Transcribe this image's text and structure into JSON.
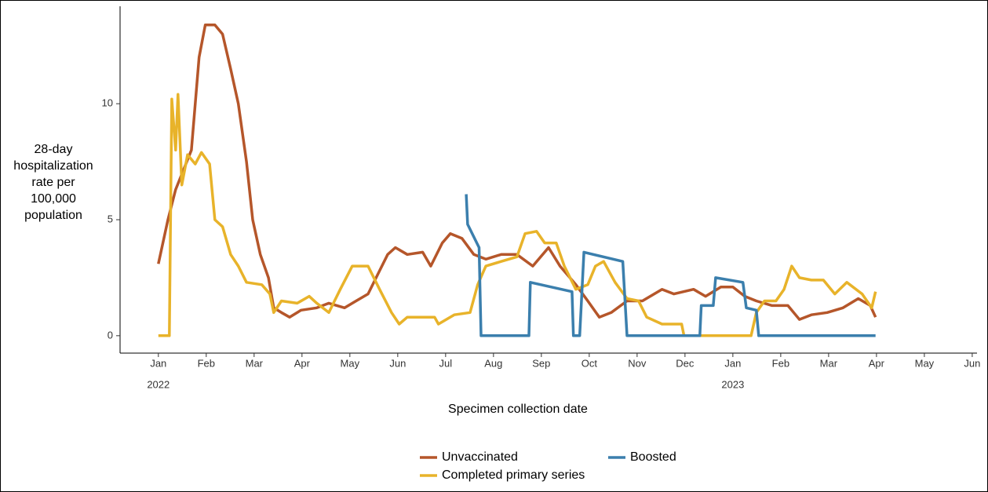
{
  "chart_data": {
    "type": "line",
    "ylabel_lines": [
      "28-day",
      "hospitalization",
      "rate per",
      "100,000",
      "population"
    ],
    "xlabel": "Specimen collection date",
    "xlim": [
      -0.8,
      17.1
    ],
    "ylim": [
      -0.75,
      14.2
    ],
    "yticks": [
      0,
      5,
      10
    ],
    "xticks": [
      {
        "value": 0,
        "label": "Jan"
      },
      {
        "value": 1,
        "label": "Feb"
      },
      {
        "value": 2,
        "label": "Mar"
      },
      {
        "value": 3,
        "label": "Apr"
      },
      {
        "value": 4,
        "label": "May"
      },
      {
        "value": 5,
        "label": "Jun"
      },
      {
        "value": 6,
        "label": "Jul"
      },
      {
        "value": 7,
        "label": "Aug"
      },
      {
        "value": 8,
        "label": "Sep"
      },
      {
        "value": 9,
        "label": "Oct"
      },
      {
        "value": 10,
        "label": "Nov"
      },
      {
        "value": 11,
        "label": "Dec"
      },
      {
        "value": 12,
        "label": "Jan"
      },
      {
        "value": 13,
        "label": "Feb"
      },
      {
        "value": 14,
        "label": "Mar"
      },
      {
        "value": 15,
        "label": "Apr"
      },
      {
        "value": 16,
        "label": "May"
      },
      {
        "value": 17,
        "label": "Jun"
      }
    ],
    "year_labels": [
      {
        "value": 0,
        "label": "2022"
      },
      {
        "value": 12,
        "label": "2023"
      }
    ],
    "grid": false,
    "legend": "bottom",
    "series": [
      {
        "name": "Unvaccinated",
        "color": "#b5562a",
        "x": [
          0,
          0.2,
          0.36,
          0.69,
          0.85,
          0.98,
          1.18,
          1.34,
          1.51,
          1.67,
          1.84,
          1.97,
          2.13,
          2.3,
          2.41,
          2.57,
          2.74,
          2.98,
          3.31,
          3.56,
          3.89,
          4.13,
          4.38,
          4.62,
          4.79,
          4.95,
          5.2,
          5.52,
          5.69,
          5.93,
          6.1,
          6.34,
          6.59,
          6.84,
          7.16,
          7.49,
          7.82,
          8.15,
          8.39,
          8.72,
          8.97,
          9.21,
          9.46,
          9.79,
          10.11,
          10.52,
          10.77,
          11.18,
          11.43,
          11.75,
          12.0,
          12.25,
          12.49,
          12.82,
          13.15,
          13.39,
          13.64,
          13.97,
          14.3,
          14.62,
          14.87,
          14.98
        ],
        "values": [
          3.1,
          5,
          6.3,
          8,
          12,
          13.4,
          13.4,
          13,
          11.5,
          10,
          7.5,
          5,
          3.5,
          2.5,
          1.2,
          1.0,
          0.8,
          1.1,
          1.2,
          1.4,
          1.2,
          1.5,
          1.8,
          2.8,
          3.5,
          3.8,
          3.5,
          3.6,
          3.0,
          4.0,
          4.4,
          4.2,
          3.5,
          3.3,
          3.5,
          3.5,
          3.0,
          3.8,
          3.0,
          2.2,
          1.5,
          0.8,
          1.0,
          1.5,
          1.5,
          2.0,
          1.8,
          2.0,
          1.7,
          2.1,
          2.1,
          1.7,
          1.5,
          1.3,
          1.3,
          0.7,
          0.9,
          1.0,
          1.2,
          1.6,
          1.3,
          0.8
        ]
      },
      {
        "name": "Completed primary series",
        "color": "#e8b32a",
        "x": [
          0,
          0.23,
          0.28,
          0.36,
          0.41,
          0.49,
          0.61,
          0.77,
          0.9,
          1.07,
          1.18,
          1.34,
          1.51,
          1.67,
          1.84,
          2.16,
          2.33,
          2.41,
          2.57,
          2.9,
          3.15,
          3.31,
          3.56,
          3.8,
          4.05,
          4.38,
          4.62,
          4.87,
          5.03,
          5.2,
          5.77,
          5.85,
          6.18,
          6.51,
          6.67,
          6.84,
          7.16,
          7.49,
          7.66,
          7.9,
          8.07,
          8.31,
          8.48,
          8.72,
          8.97,
          9.13,
          9.3,
          9.54,
          9.79,
          10.03,
          10.2,
          10.52,
          10.93,
          10.98,
          11.43,
          12.38,
          12.49,
          12.66,
          12.9,
          13.07,
          13.23,
          13.39,
          13.64,
          13.89,
          14.13,
          14.38,
          14.7,
          14.9,
          14.98
        ],
        "values": [
          0,
          0,
          10.2,
          8,
          10.4,
          6.5,
          7.8,
          7.4,
          7.9,
          7.4,
          5,
          4.7,
          3.5,
          3,
          2.3,
          2.2,
          1.8,
          1.0,
          1.5,
          1.4,
          1.7,
          1.4,
          1.0,
          2.0,
          3.0,
          3.0,
          2.0,
          1.0,
          0.5,
          0.8,
          0.8,
          0.5,
          0.9,
          1.0,
          2.2,
          3.0,
          3.2,
          3.4,
          4.4,
          4.5,
          4.0,
          4.0,
          3.0,
          2.0,
          2.2,
          3.0,
          3.2,
          2.3,
          1.6,
          1.5,
          0.8,
          0.5,
          0.5,
          0,
          0,
          0,
          1.0,
          1.5,
          1.5,
          2.0,
          3.0,
          2.5,
          2.4,
          2.4,
          1.8,
          2.3,
          1.8,
          1.2,
          1.9
        ]
      },
      {
        "name": "Boosted",
        "color": "#3b7fad",
        "x": [
          6.43,
          6.46,
          6.7,
          6.74,
          7.74,
          7.77,
          8.64,
          8.67,
          8.8,
          8.89,
          9.7,
          9.79,
          11.31,
          11.34,
          11.59,
          11.64,
          12.21,
          12.28,
          12.49,
          12.54,
          14.98
        ],
        "values": [
          6.1,
          4.8,
          3.8,
          0,
          0,
          2.3,
          1.9,
          0,
          0,
          3.6,
          3.2,
          0,
          0,
          1.3,
          1.3,
          2.5,
          2.3,
          1.2,
          1.1,
          0,
          0
        ]
      }
    ]
  }
}
